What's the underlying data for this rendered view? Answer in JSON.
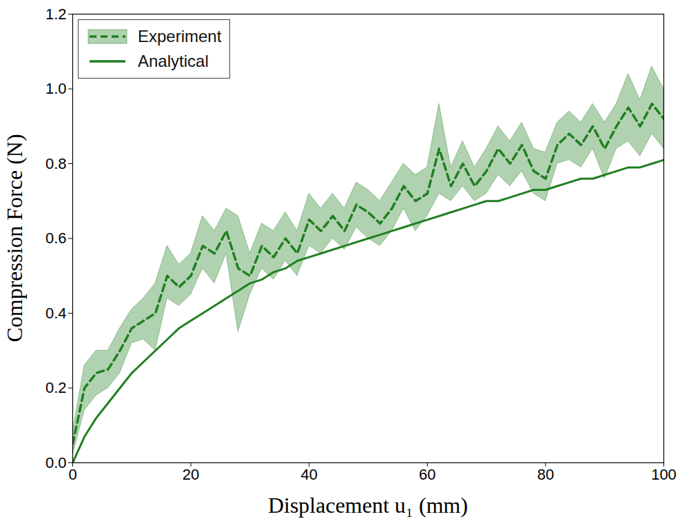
{
  "chart_data": {
    "type": "line",
    "x_label": "Displacement u₁ (mm)",
    "y_label": "Compression Force (N)",
    "xlim": [
      0,
      100
    ],
    "xticks": [
      0,
      20,
      40,
      60,
      80,
      100
    ],
    "ylim": [
      0,
      1.2
    ],
    "yticks": [
      {
        "value": 0,
        "label": "0.0"
      },
      0.2,
      0.4,
      0.6,
      0.8,
      {
        "value": 1,
        "label": "1.0"
      },
      1.2
    ],
    "grid": false,
    "legend": "upper left",
    "x": [
      0,
      2,
      4,
      6,
      8,
      10,
      12,
      14,
      16,
      18,
      20,
      22,
      24,
      26,
      28,
      30,
      32,
      34,
      36,
      38,
      40,
      42,
      44,
      46,
      48,
      50,
      52,
      54,
      56,
      58,
      60,
      62,
      64,
      66,
      68,
      70,
      72,
      74,
      76,
      78,
      80,
      82,
      84,
      86,
      88,
      90,
      92,
      94,
      96,
      98,
      100
    ],
    "series": [
      {
        "name": "Experiment",
        "color": "#1f7f1f",
        "line_style": "dashed",
        "values": [
          0.05,
          0.2,
          0.24,
          0.25,
          0.3,
          0.36,
          0.38,
          0.4,
          0.5,
          0.47,
          0.5,
          0.58,
          0.56,
          0.62,
          0.52,
          0.5,
          0.58,
          0.55,
          0.6,
          0.56,
          0.65,
          0.62,
          0.66,
          0.62,
          0.69,
          0.67,
          0.64,
          0.68,
          0.74,
          0.7,
          0.72,
          0.84,
          0.74,
          0.8,
          0.74,
          0.78,
          0.84,
          0.8,
          0.85,
          0.78,
          0.76,
          0.85,
          0.88,
          0.85,
          0.9,
          0.84,
          0.9,
          0.95,
          0.9,
          0.96,
          0.92
        ],
        "lower": [
          0.02,
          0.14,
          0.18,
          0.2,
          0.24,
          0.32,
          0.33,
          0.3,
          0.44,
          0.42,
          0.45,
          0.52,
          0.48,
          0.56,
          0.35,
          0.45,
          0.52,
          0.49,
          0.54,
          0.5,
          0.58,
          0.56,
          0.6,
          0.57,
          0.63,
          0.6,
          0.58,
          0.62,
          0.68,
          0.62,
          0.66,
          0.72,
          0.7,
          0.74,
          0.7,
          0.72,
          0.77,
          0.74,
          0.78,
          0.72,
          0.7,
          0.8,
          0.81,
          0.79,
          0.84,
          0.76,
          0.84,
          0.86,
          0.82,
          0.88,
          0.84
        ],
        "upper": [
          0.08,
          0.26,
          0.3,
          0.3,
          0.36,
          0.41,
          0.44,
          0.48,
          0.58,
          0.53,
          0.56,
          0.66,
          0.62,
          0.68,
          0.66,
          0.56,
          0.64,
          0.62,
          0.67,
          0.62,
          0.72,
          0.68,
          0.72,
          0.68,
          0.75,
          0.73,
          0.7,
          0.75,
          0.8,
          0.77,
          0.79,
          0.96,
          0.79,
          0.86,
          0.79,
          0.84,
          0.9,
          0.86,
          0.91,
          0.84,
          0.83,
          0.91,
          0.94,
          0.91,
          0.96,
          0.91,
          0.96,
          1.04,
          0.97,
          1.06,
          1.0
        ]
      },
      {
        "name": "Analytical",
        "color": "#1f7f1f",
        "line_style": "solid",
        "values": [
          0,
          0.07,
          0.12,
          0.16,
          0.2,
          0.24,
          0.27,
          0.3,
          0.33,
          0.36,
          0.38,
          0.4,
          0.42,
          0.44,
          0.46,
          0.48,
          0.49,
          0.51,
          0.52,
          0.54,
          0.55,
          0.56,
          0.57,
          0.58,
          0.59,
          0.6,
          0.61,
          0.62,
          0.63,
          0.64,
          0.65,
          0.66,
          0.67,
          0.68,
          0.69,
          0.7,
          0.7,
          0.71,
          0.72,
          0.73,
          0.73,
          0.74,
          0.75,
          0.76,
          0.76,
          0.77,
          0.78,
          0.79,
          0.79,
          0.8,
          0.81
        ]
      }
    ]
  }
}
